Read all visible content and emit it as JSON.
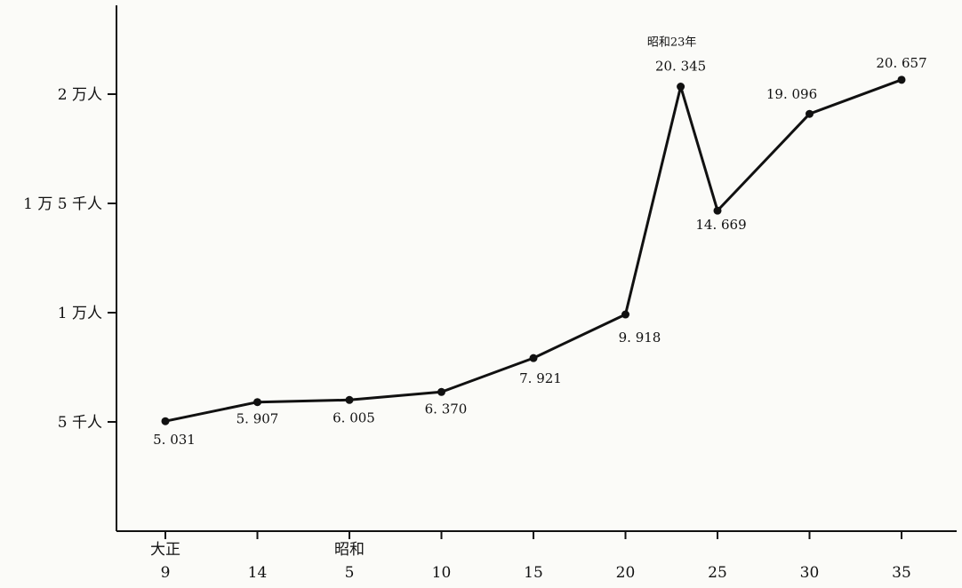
{
  "chart_data": {
    "type": "line",
    "title": "",
    "xlabel": "",
    "ylabel": "",
    "ylim": [
      0,
      24000
    ],
    "grid": false,
    "legend": "none",
    "x_ticks": [
      {
        "era": "大正",
        "label": "9",
        "year": 1920
      },
      {
        "era": "",
        "label": "14",
        "year": 1925
      },
      {
        "era": "昭和",
        "label": "5",
        "year": 1930
      },
      {
        "era": "",
        "label": "10",
        "year": 1935
      },
      {
        "era": "",
        "label": "15",
        "year": 1940
      },
      {
        "era": "",
        "label": "20",
        "year": 1945
      },
      {
        "era": "",
        "label": "25",
        "year": 1950
      },
      {
        "era": "",
        "label": "30",
        "year": 1955
      },
      {
        "era": "",
        "label": "35",
        "year": 1960
      }
    ],
    "y_ticks": [
      {
        "value": 5000,
        "label": "5 千人"
      },
      {
        "value": 10000,
        "label": "1 万人"
      },
      {
        "value": 15000,
        "label": "1 万 5 千人"
      },
      {
        "value": 20000,
        "label": "2 万人"
      }
    ],
    "series": [
      {
        "points": [
          {
            "year": 1920,
            "value": 5031,
            "label": "5. 031"
          },
          {
            "year": 1925,
            "value": 5907,
            "label": "5. 907"
          },
          {
            "year": 1930,
            "value": 6005,
            "label": "6. 005"
          },
          {
            "year": 1935,
            "value": 6370,
            "label": "6. 370"
          },
          {
            "year": 1940,
            "value": 7921,
            "label": "7. 921"
          },
          {
            "year": 1945,
            "value": 9918,
            "label": "9. 918"
          },
          {
            "year": 1948,
            "value": 20345,
            "label": "20. 345"
          },
          {
            "year": 1950,
            "value": 14669,
            "label": "14. 669"
          },
          {
            "year": 1955,
            "value": 19096,
            "label": "19. 096"
          },
          {
            "year": 1960,
            "value": 20657,
            "label": "20. 657"
          }
        ]
      }
    ],
    "annotations": [
      {
        "year": 1948,
        "text": "昭和23年"
      }
    ]
  }
}
